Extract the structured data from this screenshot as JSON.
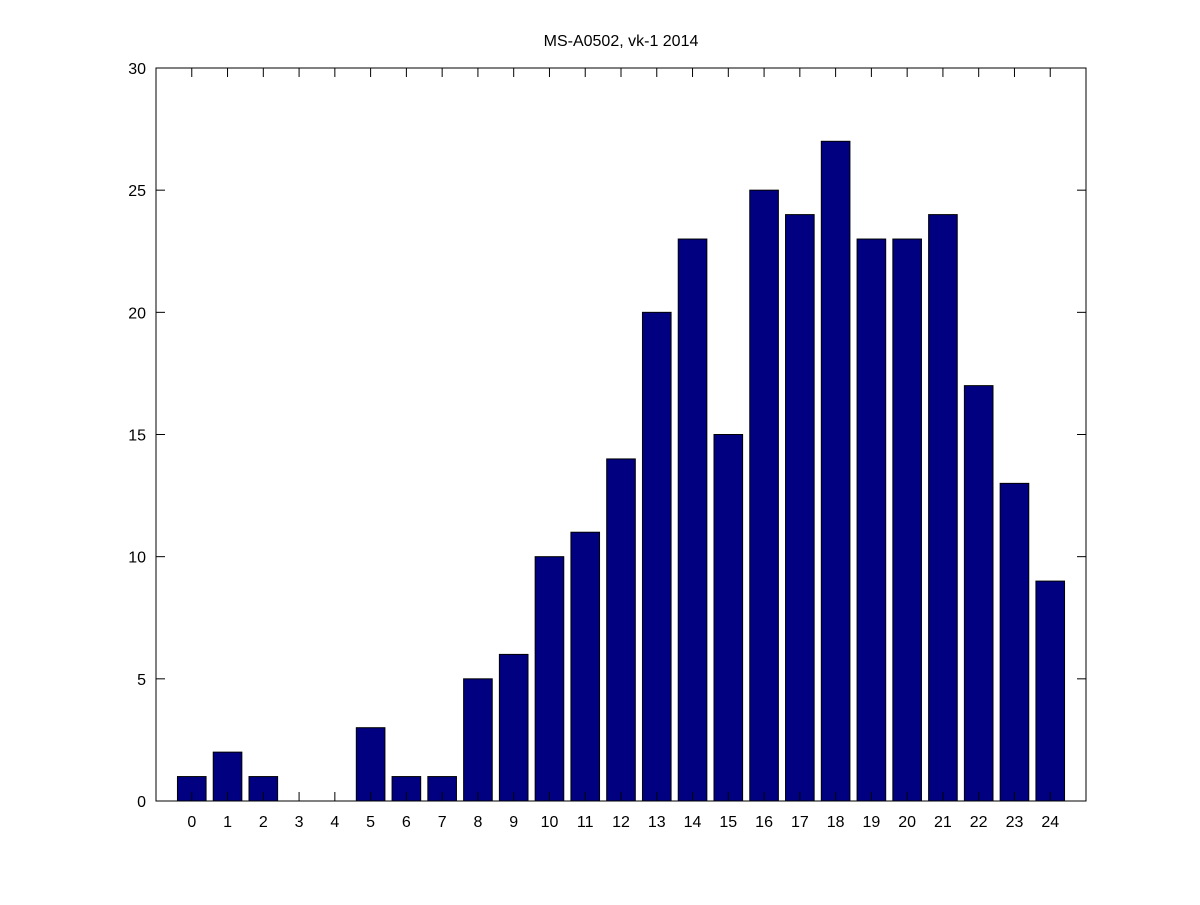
{
  "chart_data": {
    "type": "bar",
    "title": "MS-A0502, vk-1 2014",
    "xlabel": "",
    "ylabel": "",
    "categories": [
      "0",
      "1",
      "2",
      "3",
      "4",
      "5",
      "6",
      "7",
      "8",
      "9",
      "10",
      "11",
      "12",
      "13",
      "14",
      "15",
      "16",
      "17",
      "18",
      "19",
      "20",
      "21",
      "22",
      "23",
      "24"
    ],
    "values": [
      1,
      2,
      1,
      0,
      0,
      3,
      1,
      1,
      5,
      6,
      10,
      11,
      14,
      20,
      23,
      15,
      25,
      24,
      27,
      23,
      23,
      24,
      17,
      13,
      9
    ],
    "xlim": [
      -1,
      25
    ],
    "ylim": [
      0,
      30
    ],
    "yticks": [
      0,
      5,
      10,
      15,
      20,
      25,
      30
    ],
    "grid": false,
    "legend": "none",
    "bar_color": "#000080",
    "edge_color": "#000000"
  }
}
